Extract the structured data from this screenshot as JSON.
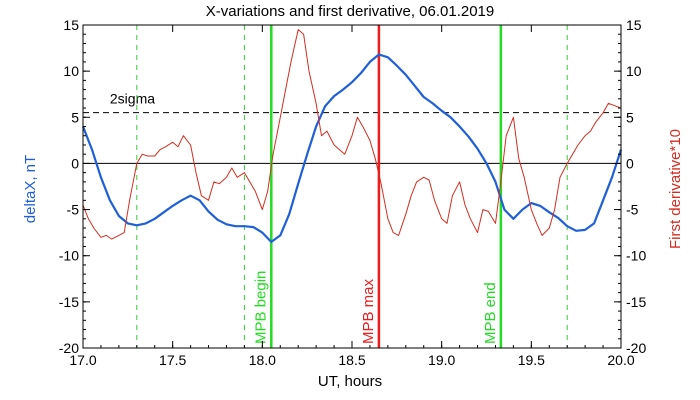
{
  "chart_data": {
    "type": "line",
    "title": "X-variations and first derivative, 06.01.2019",
    "xlabel": "UT, hours",
    "ylabel_left": "deltaX, nT",
    "ylabel_right": "First derivative*10",
    "xlim": [
      17.0,
      20.0
    ],
    "ylim_left": [
      -20,
      15
    ],
    "ylim_right": [
      -20,
      15
    ],
    "x_ticks": [
      "17.0",
      "17.5",
      "18.0",
      "18.5",
      "19.0",
      "19.5",
      "20.0"
    ],
    "y_ticks": [
      "-20",
      "-15",
      "-10",
      "-5",
      "0",
      "5",
      "10",
      "15"
    ],
    "grid": false,
    "colors": {
      "deltaX": "#1f5fd8",
      "derivative": "#d62d20",
      "mpb": "#22dd22",
      "max": "#ee1c1c",
      "aux": "#33cc33",
      "axis_left_label": "#1f5fd8",
      "axis_right_label": "#d62d20"
    },
    "threshold": {
      "value": 5.5,
      "label": "2sigma"
    },
    "zero_line": 0,
    "series": [
      {
        "name": "deltaX",
        "axis": "left",
        "x": [
          17.0,
          17.05,
          17.1,
          17.15,
          17.2,
          17.25,
          17.3,
          17.35,
          17.4,
          17.45,
          17.5,
          17.55,
          17.6,
          17.65,
          17.7,
          17.75,
          17.8,
          17.85,
          17.9,
          17.95,
          18.0,
          18.05,
          18.1,
          18.15,
          18.2,
          18.25,
          18.3,
          18.35,
          18.4,
          18.45,
          18.5,
          18.55,
          18.6,
          18.65,
          18.7,
          18.75,
          18.8,
          18.85,
          18.9,
          18.95,
          19.0,
          19.05,
          19.1,
          19.15,
          19.2,
          19.25,
          19.3,
          19.35,
          19.4,
          19.45,
          19.5,
          19.55,
          19.6,
          19.65,
          19.7,
          19.75,
          19.8,
          19.85,
          19.9,
          19.95,
          20.0
        ],
        "values": [
          4.0,
          1.5,
          -1.5,
          -4.0,
          -5.7,
          -6.5,
          -6.7,
          -6.5,
          -6.0,
          -5.3,
          -4.6,
          -4.0,
          -3.5,
          -4.0,
          -5.2,
          -6.1,
          -6.6,
          -6.8,
          -6.8,
          -6.9,
          -7.5,
          -8.5,
          -7.8,
          -5.5,
          -2.2,
          1.0,
          4.0,
          6.2,
          7.3,
          8.0,
          8.8,
          9.8,
          11.0,
          11.8,
          11.5,
          10.6,
          9.6,
          8.4,
          7.2,
          6.5,
          5.7,
          5.0,
          4.0,
          2.9,
          1.6,
          0.0,
          -2.0,
          -5.0,
          -6.0,
          -5.0,
          -4.3,
          -4.6,
          -5.3,
          -5.9,
          -6.8,
          -7.3,
          -7.2,
          -6.5,
          -4.0,
          -1.5,
          1.5
        ]
      },
      {
        "name": "First derivative*10",
        "axis": "right",
        "x": [
          17.0,
          17.03,
          17.06,
          17.1,
          17.13,
          17.16,
          17.2,
          17.23,
          17.26,
          17.3,
          17.33,
          17.36,
          17.4,
          17.43,
          17.46,
          17.5,
          17.53,
          17.56,
          17.6,
          17.63,
          17.66,
          17.7,
          17.73,
          17.76,
          17.8,
          17.83,
          17.86,
          17.9,
          17.93,
          17.96,
          18.0,
          18.03,
          18.06,
          18.1,
          18.13,
          18.16,
          18.2,
          18.23,
          18.26,
          18.3,
          18.33,
          18.36,
          18.4,
          18.43,
          18.46,
          18.5,
          18.53,
          18.56,
          18.6,
          18.63,
          18.66,
          18.7,
          18.73,
          18.76,
          18.8,
          18.83,
          18.86,
          18.9,
          18.93,
          18.96,
          19.0,
          19.03,
          19.06,
          19.1,
          19.13,
          19.16,
          19.2,
          19.23,
          19.26,
          19.3,
          19.33,
          19.36,
          19.4,
          19.43,
          19.46,
          19.5,
          19.53,
          19.56,
          19.6,
          19.63,
          19.66,
          19.7,
          19.73,
          19.76,
          19.8,
          19.83,
          19.86,
          19.9,
          19.93,
          19.96,
          20.0
        ],
        "values": [
          -4.5,
          -6.0,
          -7.0,
          -8.0,
          -7.8,
          -8.2,
          -7.8,
          -7.5,
          -4.0,
          0.0,
          1.0,
          0.8,
          0.8,
          1.5,
          1.8,
          2.3,
          1.8,
          3.0,
          2.0,
          -1.0,
          -3.5,
          -4.0,
          -2.0,
          -2.2,
          -1.5,
          -0.5,
          -1.5,
          -1.0,
          -2.0,
          -3.0,
          -5.0,
          -3.0,
          1.0,
          5.0,
          8.0,
          11.0,
          14.5,
          14.0,
          10.0,
          6.5,
          3.0,
          3.5,
          2.0,
          1.5,
          1.0,
          3.0,
          5.0,
          4.0,
          2.5,
          0.5,
          -2.0,
          -6.0,
          -7.5,
          -7.8,
          -5.5,
          -3.5,
          -2.0,
          -1.5,
          -1.8,
          -4.0,
          -6.0,
          -6.5,
          -3.5,
          -2.0,
          -4.5,
          -6.0,
          -7.5,
          -5.0,
          -5.2,
          -6.5,
          -2.0,
          3.0,
          5.0,
          0.5,
          -1.5,
          -5.0,
          -6.5,
          -7.8,
          -7.0,
          -5.0,
          -1.5,
          0.0,
          1.0,
          2.0,
          3.0,
          3.5,
          4.5,
          5.5,
          6.5,
          6.3,
          6.0
        ]
      }
    ],
    "vertical_lines": [
      {
        "x": 17.3,
        "style": "dashed",
        "color_key": "aux",
        "label": ""
      },
      {
        "x": 17.9,
        "style": "dashed",
        "color_key": "aux",
        "label": ""
      },
      {
        "x": 18.05,
        "style": "solid",
        "color_key": "mpb",
        "label": "MPB begin"
      },
      {
        "x": 18.65,
        "style": "solid",
        "color_key": "max",
        "label": "MPB max"
      },
      {
        "x": 19.33,
        "style": "solid",
        "color_key": "mpb",
        "label": "MPB end"
      },
      {
        "x": 19.7,
        "style": "dashed",
        "color_key": "aux",
        "label": ""
      }
    ]
  }
}
